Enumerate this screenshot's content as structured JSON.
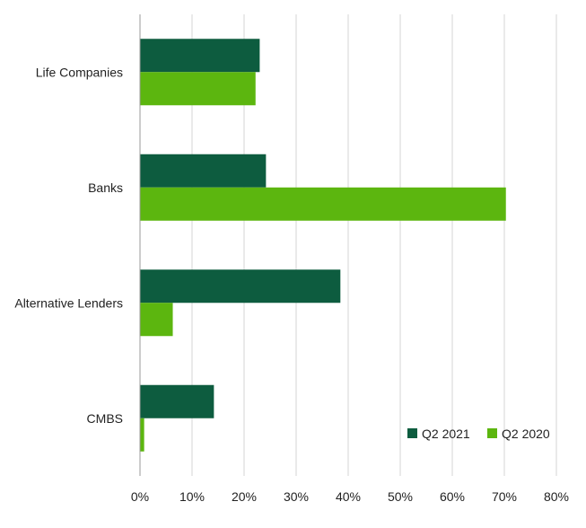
{
  "chart_data": {
    "type": "bar",
    "orientation": "horizontal",
    "categories": [
      "Life Companies",
      "Banks",
      "Alternative Lenders",
      "CMBS"
    ],
    "series": [
      {
        "name": "Q2 2021",
        "color": "#0d5c3f",
        "values": [
          23,
          24.2,
          38.5,
          14.2
        ]
      },
      {
        "name": "Q2 2020",
        "color": "#5cb60f",
        "values": [
          22.2,
          70.3,
          6.3,
          0.8
        ]
      }
    ],
    "x_ticks": [
      "0%",
      "10%",
      "20%",
      "30%",
      "40%",
      "50%",
      "60%",
      "70%",
      "80%"
    ],
    "xlim": [
      0,
      80
    ],
    "grid": true,
    "legend_position": "bottom-right",
    "title": "",
    "xlabel": "",
    "ylabel": ""
  }
}
